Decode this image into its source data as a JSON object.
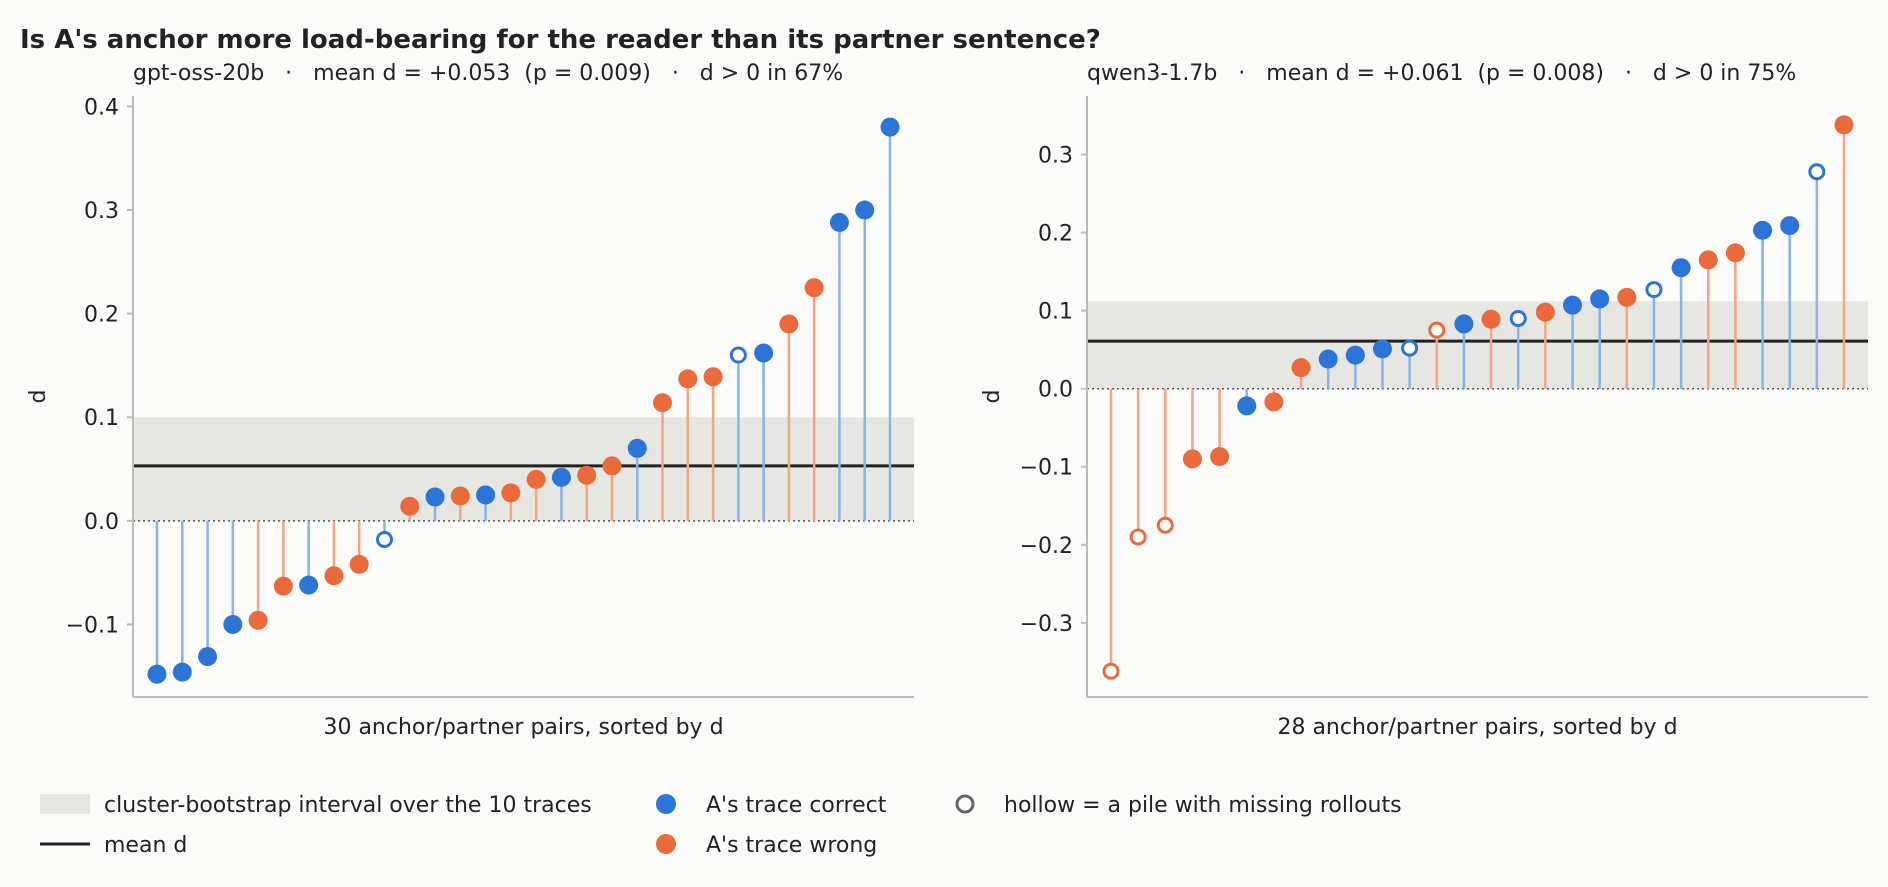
{
  "title": "Is A's anchor more load-bearing for the reader than its partner sentence?",
  "colors": {
    "correct": "#2c74d6",
    "wrong": "#eb6a3b",
    "correct_stem": "#8ab1e8",
    "wrong_stem": "#f1a586",
    "band": "#e6e6e3",
    "mean_line": "#222222",
    "axis": "#bbbbbb",
    "hollow_legend": "#666666"
  },
  "legend": {
    "band": "cluster-bootstrap interval over the 10 traces",
    "mean": "mean d",
    "correct": "A's trace correct",
    "wrong": "A's trace wrong",
    "hollow": "hollow = a pile with missing rollouts"
  },
  "chart_data": [
    {
      "type": "lollipop",
      "title": "gpt-oss-20b   ·   mean d = +0.053  (p = 0.009)   ·   d > 0 in 67%",
      "xlabel": "30 anchor/partner pairs, sorted by d",
      "ylabel": "d",
      "ylim": [
        -0.17,
        0.41
      ],
      "yticks": [
        -0.1,
        0.0,
        0.1,
        0.2,
        0.3,
        0.4
      ],
      "ytick_labels": [
        "−0.1",
        "0.0",
        "0.1",
        "0.2",
        "0.3",
        "0.4"
      ],
      "mean": 0.053,
      "interval": [
        0.0,
        0.1
      ],
      "points": [
        {
          "d": -0.148,
          "correct": true,
          "hollow": false
        },
        {
          "d": -0.146,
          "correct": true,
          "hollow": false
        },
        {
          "d": -0.131,
          "correct": true,
          "hollow": false
        },
        {
          "d": -0.1,
          "correct": true,
          "hollow": false
        },
        {
          "d": -0.096,
          "correct": false,
          "hollow": false
        },
        {
          "d": -0.063,
          "correct": false,
          "hollow": false
        },
        {
          "d": -0.062,
          "correct": true,
          "hollow": false
        },
        {
          "d": -0.053,
          "correct": false,
          "hollow": false
        },
        {
          "d": -0.042,
          "correct": false,
          "hollow": false
        },
        {
          "d": -0.018,
          "correct": true,
          "hollow": true
        },
        {
          "d": 0.014,
          "correct": false,
          "hollow": false
        },
        {
          "d": 0.023,
          "correct": true,
          "hollow": false
        },
        {
          "d": 0.024,
          "correct": false,
          "hollow": false
        },
        {
          "d": 0.025,
          "correct": true,
          "hollow": false
        },
        {
          "d": 0.027,
          "correct": false,
          "hollow": false
        },
        {
          "d": 0.04,
          "correct": false,
          "hollow": false
        },
        {
          "d": 0.042,
          "correct": true,
          "hollow": false
        },
        {
          "d": 0.044,
          "correct": false,
          "hollow": false
        },
        {
          "d": 0.053,
          "correct": false,
          "hollow": false
        },
        {
          "d": 0.07,
          "correct": true,
          "hollow": false
        },
        {
          "d": 0.114,
          "correct": false,
          "hollow": false
        },
        {
          "d": 0.137,
          "correct": false,
          "hollow": false
        },
        {
          "d": 0.139,
          "correct": false,
          "hollow": false
        },
        {
          "d": 0.16,
          "correct": true,
          "hollow": true
        },
        {
          "d": 0.162,
          "correct": true,
          "hollow": false
        },
        {
          "d": 0.19,
          "correct": false,
          "hollow": false
        },
        {
          "d": 0.225,
          "correct": false,
          "hollow": false
        },
        {
          "d": 0.288,
          "correct": true,
          "hollow": false
        },
        {
          "d": 0.3,
          "correct": true,
          "hollow": false
        },
        {
          "d": 0.38,
          "correct": true,
          "hollow": false
        }
      ]
    },
    {
      "type": "lollipop",
      "title": "qwen3-1.7b   ·   mean d = +0.061  (p = 0.008)   ·   d > 0 in 75%",
      "xlabel": "28 anchor/partner pairs, sorted by d",
      "ylabel": "d",
      "ylim": [
        -0.395,
        0.375
      ],
      "yticks": [
        -0.3,
        -0.2,
        -0.1,
        0.0,
        0.1,
        0.2,
        0.3
      ],
      "ytick_labels": [
        "−0.3",
        "−0.2",
        "−0.1",
        "0.0",
        "0.1",
        "0.2",
        "0.3"
      ],
      "mean": 0.061,
      "interval": [
        0.0,
        0.112
      ],
      "points": [
        {
          "d": -0.362,
          "correct": false,
          "hollow": true
        },
        {
          "d": -0.19,
          "correct": false,
          "hollow": true
        },
        {
          "d": -0.175,
          "correct": false,
          "hollow": true
        },
        {
          "d": -0.09,
          "correct": false,
          "hollow": false
        },
        {
          "d": -0.087,
          "correct": false,
          "hollow": false
        },
        {
          "d": -0.022,
          "correct": true,
          "hollow": false
        },
        {
          "d": -0.017,
          "correct": false,
          "hollow": false
        },
        {
          "d": 0.027,
          "correct": false,
          "hollow": false
        },
        {
          "d": 0.038,
          "correct": true,
          "hollow": false
        },
        {
          "d": 0.043,
          "correct": true,
          "hollow": false
        },
        {
          "d": 0.051,
          "correct": true,
          "hollow": false
        },
        {
          "d": 0.052,
          "correct": true,
          "hollow": true
        },
        {
          "d": 0.075,
          "correct": false,
          "hollow": true
        },
        {
          "d": 0.083,
          "correct": true,
          "hollow": false
        },
        {
          "d": 0.089,
          "correct": false,
          "hollow": false
        },
        {
          "d": 0.09,
          "correct": true,
          "hollow": true
        },
        {
          "d": 0.098,
          "correct": false,
          "hollow": false
        },
        {
          "d": 0.107,
          "correct": true,
          "hollow": false
        },
        {
          "d": 0.115,
          "correct": true,
          "hollow": false
        },
        {
          "d": 0.117,
          "correct": false,
          "hollow": false
        },
        {
          "d": 0.127,
          "correct": true,
          "hollow": true
        },
        {
          "d": 0.155,
          "correct": true,
          "hollow": false
        },
        {
          "d": 0.165,
          "correct": false,
          "hollow": false
        },
        {
          "d": 0.174,
          "correct": false,
          "hollow": false
        },
        {
          "d": 0.203,
          "correct": true,
          "hollow": false
        },
        {
          "d": 0.209,
          "correct": true,
          "hollow": false
        },
        {
          "d": 0.278,
          "correct": true,
          "hollow": true
        },
        {
          "d": 0.338,
          "correct": false,
          "hollow": false
        }
      ]
    }
  ]
}
